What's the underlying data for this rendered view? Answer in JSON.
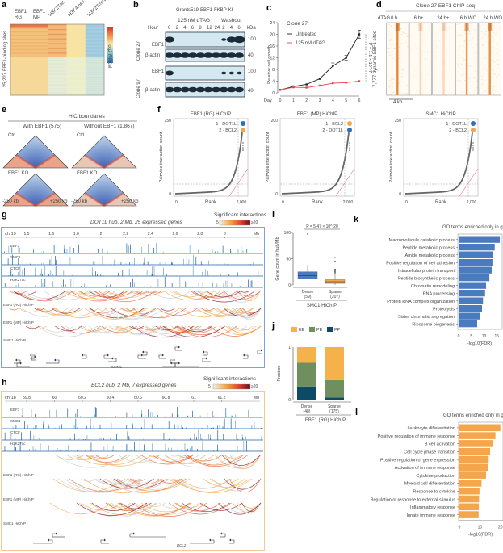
{
  "panels": {
    "a": {
      "label": "a",
      "columns": [
        "EBF1\nRG",
        "EBF1\nMP",
        "H3K27ac",
        "H3K4me1",
        "H3K27me3"
      ],
      "col1": [
        "EBF1",
        "RG"
      ],
      "col2": [
        "EBF1",
        "MP"
      ],
      "col3": "H3K27ac",
      "col4": "H3K4me1",
      "col5": "H3K27me3",
      "ylabel": "25,227 EBF1-binding sites",
      "scale_label": "log2 RPKM",
      "scale_max": "5",
      "scale_min": "-5"
    },
    "b": {
      "label": "b",
      "title": "Grants519-EBF1-FKBP-KI",
      "treatment": "125 nM dTAG",
      "washout": "Washout",
      "hour_label": "Hour",
      "hours": [
        "0",
        "2",
        "4",
        "6",
        "8",
        "12",
        "24",
        "2",
        "4",
        "6"
      ],
      "kda_label": "kDa",
      "clones": [
        {
          "name": "Clone 27",
          "rows": [
            {
              "protein": "EBF1",
              "kda": "100"
            },
            {
              "protein": "β-actin",
              "kda": "40"
            }
          ]
        },
        {
          "name": "Clone 97",
          "rows": [
            {
              "protein": "EBF1",
              "kda": "100"
            },
            {
              "protein": "β-actin",
              "kda": "40"
            }
          ]
        }
      ]
    },
    "c": {
      "label": "c"
    },
    "d": {
      "label": "d",
      "title": "Clone 27 EBF1 ChIP-seq",
      "dtag_label": "dTAG",
      "conditions": [
        "0 h",
        "6 h+",
        "24 h+",
        "6 h WO",
        "24 h WO"
      ],
      "ylabel": "7,777 dynamic EBF1 sites",
      "scalebar": "4 kb"
    },
    "e": {
      "label": "e",
      "title": "HiC boundaries",
      "groups": [
        {
          "name": "With EBF1 (575)"
        },
        {
          "name": "Without EBF1 (1,867)"
        }
      ],
      "rows": [
        "Ctrl",
        "EBF1 KO"
      ],
      "left_tick": "-250 kb",
      "right_tick": "+250 kb"
    },
    "f": {
      "label": "f"
    },
    "g": {
      "label": "g",
      "title": "DOT1L hub, 2 Mb, 25 expressed genes",
      "chrom": "chr19",
      "ticks": [
        "1.5",
        "1.6",
        "1.8",
        "2",
        "2.2",
        "2.4",
        "2.6",
        "2.8",
        "3"
      ],
      "unit": "Mb",
      "tracks": [
        "EBF1",
        "SMC1",
        "CTCF",
        "H3K27ac"
      ],
      "hichip": [
        "EBF1 (RG) HiChIP",
        "EBF1 (MP) HiChIP",
        "SMC1 HiChIP"
      ],
      "gene_label": "DOT1L",
      "legend_title": "Significant interactions",
      "legend_min": "5",
      "legend_max": "≥20"
    },
    "h": {
      "label": "h",
      "title": "BCL2 hub, 2 Mb, 7 expressed genes",
      "chrom": "chr18",
      "ticks": [
        "59.8",
        "60",
        "60.2",
        "60.4",
        "60.6",
        "60.8",
        "61",
        "61.2"
      ],
      "unit": "Mb",
      "tracks": [
        "EBF1",
        "SMC1",
        "CTCF",
        "H3K27ac"
      ],
      "hichip": [
        "EBF1 (RG) HiChIP",
        "EBF1 (MP) HiChIP",
        "SMC1 HiChIP"
      ],
      "gene_label": "BCL2",
      "legend_title": "Significant interactions",
      "legend_min": "5",
      "legend_max": "≥20"
    },
    "i": {
      "label": "i"
    },
    "j": {
      "label": "j"
    },
    "k": {
      "label": "k"
    },
    "l": {
      "label": "l"
    }
  },
  "colors": {
    "blue": "#4a7bbf",
    "orange": "#f5a64a",
    "red": "#e8424f",
    "track": "#1f5fa0",
    "gframe": "#7aa3d6",
    "hframe": "#f3c999"
  },
  "chart_data": [
    {
      "id": "c",
      "type": "line",
      "title": "Clone 27",
      "xlabel": "Day",
      "ylabel": "Relative cell growth",
      "x": [
        0,
        1,
        2,
        3,
        4,
        5,
        6
      ],
      "xlim": [
        0,
        6
      ],
      "ylim": [
        0,
        24
      ],
      "yticks": [
        0,
        4,
        8,
        12,
        16,
        20,
        24
      ],
      "series": [
        {
          "name": "Untreated",
          "color": "#222222",
          "values": [
            1,
            2.2,
            2.9,
            4.8,
            9.2,
            12,
            20
          ]
        },
        {
          "name": "125 nM dTAG",
          "color": "#e8424f",
          "values": [
            1,
            1.9,
            1.8,
            2.5,
            3.3,
            3.5,
            4.0
          ]
        }
      ],
      "annotation": "P = 1.1 × 10^-7",
      "legend": "top-left"
    },
    {
      "id": "f1",
      "type": "scatter",
      "title": "EBF1 (RG) HiChIP",
      "xlabel": "Rank",
      "ylabel": "Pairwise interaction count",
      "xticks": [
        "0",
        "2,000"
      ],
      "yticks": [
        "0",
        "250"
      ],
      "ylim": [
        0,
        250
      ],
      "xlim": [
        0,
        2200
      ],
      "highlights": [
        {
          "rank": 1,
          "gene": "DOT1L",
          "color": "#2a6fc0"
        },
        {
          "rank": 2,
          "gene": "BCL2",
          "color": "#f5a64a"
        }
      ],
      "legend_lines": [
        "1 - DOT1L",
        "2 - BCL2"
      ]
    },
    {
      "id": "f2",
      "type": "scatter",
      "title": "EBF1 (MP) HiChIP",
      "xlabel": "Rank",
      "ylabel": "Pairwise interaction count",
      "xticks": [
        "0",
        "2,000"
      ],
      "yticks": [
        "0",
        "200"
      ],
      "ylim": [
        0,
        200
      ],
      "xlim": [
        0,
        2200
      ],
      "highlights": [
        {
          "rank": 1,
          "gene": "BCL2",
          "color": "#f5a64a"
        },
        {
          "rank": 2,
          "gene": "DOT1L",
          "color": "#2a6fc0"
        }
      ],
      "legend_lines": [
        "1 - BCL2",
        "2 - DOT1L"
      ]
    },
    {
      "id": "f3",
      "type": "scatter",
      "title": "SMC1 HiChIP",
      "xlabel": "Rank",
      "ylabel": "Pairwise interaction count",
      "xticks": [
        "0",
        "2,000"
      ],
      "yticks": [
        "0",
        "250"
      ],
      "ylim": [
        0,
        250
      ],
      "xlim": [
        0,
        2200
      ],
      "highlights": [
        {
          "rank": 1,
          "gene": "DOT1L",
          "color": "#2a6fc0"
        },
        {
          "rank": 2,
          "gene": "BCL2",
          "color": "#f5a64a"
        }
      ],
      "legend_lines": [
        "1 - DOT1L",
        "2 - BCL2"
      ]
    },
    {
      "id": "i",
      "type": "box",
      "ylabel": "Gene count in hub/Mb",
      "xlabel": "SMC1 HiChIP",
      "ylim": [
        0,
        100
      ],
      "yticks": [
        0,
        50,
        100
      ],
      "annotation": "P = 5.47 × 10^-20",
      "categories": [
        "Dense\n(59)",
        "Sparse\n(207)"
      ],
      "cat_names": [
        "Dense",
        "Sparse"
      ],
      "cat_counts": [
        "(59)",
        "(207)"
      ],
      "boxes": [
        {
          "name": "Dense",
          "color": "#4a7bbf",
          "min": 12,
          "q1": 12,
          "median": 18,
          "q3": 25,
          "max": 38,
          "outliers": [
            97
          ]
        },
        {
          "name": "Sparse",
          "color": "#f5a64a",
          "min": 0,
          "q1": 3,
          "median": 6,
          "q3": 10,
          "max": 20,
          "outliers": [
            23,
            25,
            27,
            30,
            45,
            52
          ]
        }
      ]
    },
    {
      "id": "j",
      "type": "bar",
      "ylabel": "Fraction",
      "xlabel": "EBF1 (RG) HiChIP",
      "ylim": [
        0,
        1
      ],
      "yticks": [
        0,
        1
      ],
      "categories": [
        "Dense (48)",
        "Sparse (175)"
      ],
      "cat_names": [
        "Dense",
        "Sparse"
      ],
      "cat_counts": [
        "(48)",
        "(175)"
      ],
      "series": [
        {
          "name": "PP",
          "color": "#0d4a66",
          "values": [
            0.25,
            0.04
          ]
        },
        {
          "name": "PE",
          "color": "#6f8f5e",
          "values": [
            0.45,
            0.33
          ]
        },
        {
          "name": "EE",
          "color": "#f5b24a",
          "values": [
            0.3,
            0.63
          ]
        }
      ],
      "legend": "top"
    },
    {
      "id": "k",
      "type": "bar",
      "title": "GO terms enriched only in gene-dense hubs",
      "xlabel": "-log10(FDR)",
      "xlim": [
        0,
        16.5
      ],
      "xticks": [
        0,
        5,
        10,
        15
      ],
      "color": "#4a7bbf",
      "categories": [
        "Macromolecule catabolic process",
        "Peptide metabolic process",
        "Amide metabolic process",
        "Positive regulation of cell adhesion",
        "Intracellular protein transport",
        "Peptide biosynthetic process",
        "Chromatin remodeling",
        "RNA processing",
        "Protein RNA complex organization",
        "Proteolysis",
        "Sister chromatid segregation",
        "Ribosome biogenesis"
      ],
      "values": [
        16.2,
        14.2,
        13.4,
        13.3,
        13.0,
        12.1,
        10.8,
        10.4,
        9.6,
        9.2,
        8.3,
        7.3
      ]
    },
    {
      "id": "l",
      "type": "bar",
      "title": "GO terms enriched only in gene-sparse hubs",
      "xlabel": "-log10(FDR)",
      "xlim": [
        0,
        20.5
      ],
      "xticks": [
        0,
        10,
        20
      ],
      "color": "#f5a64a",
      "categories": [
        "Leukocyte differentiation",
        "Positive regulation of immune response",
        "B cell activation",
        "Cell cycle phase transition",
        "Positive regulation of gene expression",
        "Activation of immune response",
        "Cytokine production",
        "Myeloid cell differentiation",
        "Response to cytokine",
        "Regulation of response to external stimulus",
        "Inflammatory response",
        "Innate immune response"
      ],
      "values": [
        20.0,
        17.6,
        16.4,
        15.0,
        14.3,
        14.1,
        13.0,
        10.8,
        9.8,
        9.6,
        9.5,
        9.4
      ]
    }
  ]
}
